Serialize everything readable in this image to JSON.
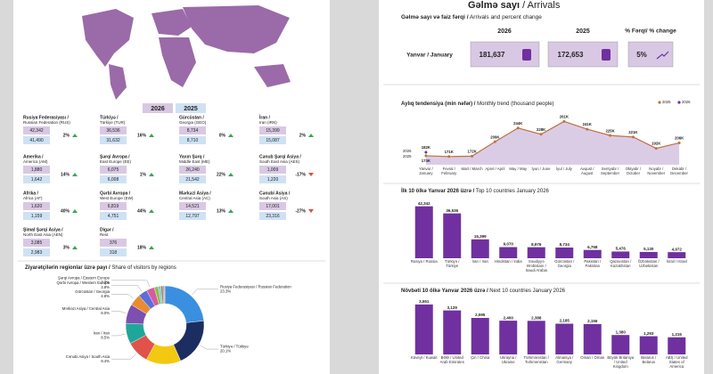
{
  "left": {
    "legend": [
      "2026",
      "2025"
    ],
    "regions": [
      {
        "name": "Rusiya Federasiyası /",
        "name_en": "Russian Federation (RUS)",
        "v2026": "42,342",
        "v2025": "41,490",
        "change": "2%",
        "trend": "up"
      },
      {
        "name": "Türkiyə /",
        "name_en": "Türkiye (TUR)",
        "v2026": "36,536",
        "v2025": "31,632",
        "change": "16%",
        "trend": "up"
      },
      {
        "name": "Gürcüstan /",
        "name_en": "Georgia (GEO)",
        "v2026": "8,734",
        "v2025": "8,710",
        "change": "0%",
        "trend": "up"
      },
      {
        "name": "İran /",
        "name_en": "Iran (IRN)",
        "v2026": "15,399",
        "v2025": "15,087",
        "change": "2%",
        "trend": "up"
      },
      {
        "name": "Amerika /",
        "name_en": "America (AM)",
        "v2026": "1,880",
        "v2025": "1,642",
        "change": "14%",
        "trend": "up"
      },
      {
        "name": "Şərqi Avropa /",
        "name_en": "East Europe (EE)",
        "v2026": "6,075",
        "v2025": "6,008",
        "change": "1%",
        "trend": "up"
      },
      {
        "name": "Yaxın Şərq /",
        "name_en": "Middle East (ME)",
        "v2026": "26,240",
        "v2025": "21,542",
        "change": "22%",
        "trend": "up"
      },
      {
        "name": "Cənub Şərqi Asiya /",
        "name_en": "South East Asia (AES)",
        "v2026": "1,009",
        "v2025": "1,220",
        "change": "-17%",
        "trend": "down"
      },
      {
        "name": "Afrika /",
        "name_en": "Africa (AF)",
        "v2026": "1,620",
        "v2025": "1,159",
        "change": "40%",
        "trend": "up"
      },
      {
        "name": "Qərbi Avropa /",
        "name_en": "West Europe (EW)",
        "v2026": "6,819",
        "v2025": "4,751",
        "change": "44%",
        "trend": "up"
      },
      {
        "name": "Mərkəzi Asiya /",
        "name_en": "Central Asia (AC)",
        "v2026": "14,521",
        "v2025": "12,797",
        "change": "13%",
        "trend": "up"
      },
      {
        "name": "Cənubi Asiya /",
        "name_en": "South Asia (AS)",
        "v2026": "17,001",
        "v2025": "23,316",
        "change": "-27%",
        "trend": "down"
      },
      {
        "name": "Şimal Şərqi Asiya /",
        "name_en": "North East Asia (AEN)",
        "v2026": "3,085",
        "v2025": "2,983",
        "change": "3%",
        "trend": "up"
      },
      {
        "name": "Digər /",
        "name_en": "Rest",
        "v2026": "376",
        "v2025": "318",
        "change": "18%",
        "trend": "up"
      }
    ],
    "share_heading": "Ziyarətçilərin regionlar üzrə payı /",
    "share_heading_en": "Share of visitors by regions"
  },
  "right": {
    "title": "Gəlmə sayı",
    "title_en": "/ Arrivals",
    "kpi_heading": "Gəlmə sayı və faiz fərqi /",
    "kpi_heading_en": "Arrivals and percent change",
    "kpi": {
      "columns": [
        "2026",
        "2025",
        "% Fərqi/ % change"
      ],
      "row": "Yanvar / January",
      "v2026": "181,637",
      "v2025": "172,653",
      "change": "5%"
    },
    "trend_heading": "Aylıq tendensiya (min nəfər) /",
    "trend_heading_en": "Monthly trend (thousand people)",
    "top_heading": "İlk 10 ölkə Yanvar 2026 üzrə /",
    "top_heading_en": "Top 10 countries January 2026",
    "next_heading": "Növbəti 10 ölkə Yanvar 2026 üzrə /",
    "next_heading_en": "Next 10 countries January 2026"
  },
  "chart_data": [
    {
      "type": "donut",
      "categories": [
        "Rusiya Federasiyası / Russian Federation",
        "Türkiyə / Türkiyə",
        null,
        "Cənubi Asiya / South Asia",
        "İran / Iran",
        "Mərkəzi Asiya / Central Asia",
        "Gürcüstan / Georgia",
        "Qərbi Avropa / Western Europe",
        "Şərqi Avropa / Eastern Europe",
        null,
        null,
        null,
        null,
        null
      ],
      "values": [
        23.3,
        20.1,
        14.4,
        9.4,
        8.5,
        8.0,
        4.8,
        3.8,
        3.3,
        1.7,
        1.0,
        0.9,
        0.6,
        0.2
      ],
      "value_labels": [
        "23.3%",
        "20.1%",
        null,
        "9.4%",
        "8.5%",
        "8.0%",
        "4.8%",
        "3.8%",
        "3.3%",
        null,
        null,
        null,
        null,
        null
      ],
      "colors": [
        "#3b8fe0",
        "#1c2d61",
        "#f2c811",
        "#e0524a",
        "#1fa69a",
        "#7c4fb0",
        "#e88c2f",
        "#5b6fd6",
        "#d65b9f",
        "#8fbf4a",
        "#6ec6e8",
        "#b0774b",
        "#999999",
        "#444444"
      ]
    },
    {
      "type": "line",
      "categories": [
        "Yanvar / January",
        "Fevral / February",
        "Mart / March",
        "Aprel / April",
        "May / May",
        "İyun / June",
        "İyul / July",
        "Avqust / August",
        "Sentyabr / September",
        "Oktyabr / October",
        "Noyabr / November",
        "Dekabr / December"
      ],
      "series": [
        {
          "name": "2025",
          "color": "#c0703f",
          "values": [
            173,
            171,
            172,
            209,
            244,
            228,
            261,
            241,
            225,
            221,
            192,
            206
          ],
          "value_labels": [
            "173K",
            "171K",
            "172K",
            "209K",
            "244K",
            "228K",
            "261K",
            "241K",
            "225K",
            "221K",
            "192K",
            "206K"
          ]
        },
        {
          "name": "2026",
          "color": "#7030a0",
          "values": [
            182,
            null,
            null,
            null,
            null,
            null,
            null,
            null,
            null,
            null,
            null,
            null
          ],
          "value_labels": [
            "182K",
            null,
            null,
            null,
            null,
            null,
            null,
            null,
            null,
            null,
            null,
            null
          ]
        }
      ],
      "ylim": [
        150,
        280
      ]
    },
    {
      "type": "bar",
      "categories": [
        "Rusiya / Russia",
        "Türkiyə / Türkiye",
        "İran / Iran",
        "Hindistan / India",
        "Səudiyyə Ərəbistanı / Saudi Arabia",
        "Gürcüstan / Georgia",
        "Pakistan / Pakistan",
        "Qazaxıstan / Kazakhstan",
        "Özbəkistan / Uzbekistan",
        "İsrail / Israel"
      ],
      "values": [
        42342,
        36536,
        15399,
        9070,
        8976,
        8734,
        6758,
        5476,
        5130,
        4972
      ],
      "value_labels": [
        "42,342",
        "36,536",
        "15,399",
        "9,070",
        "8,976",
        "8,734",
        "6,758",
        "5,476",
        "5,130",
        "4,972"
      ],
      "color": "#7030a0",
      "ylim": [
        0,
        45000
      ]
    },
    {
      "type": "bar",
      "categories": [
        "Küveyt / Kuwait",
        "BƏƏ / United Arab Emirates",
        "Çin / China",
        "Ukrayna / Ukraine",
        "Türkmənistan / Turkmenistan",
        "Almaniya / Germany",
        "Oman / Oman",
        "Böyük Britaniya / United Kingdom",
        "Belarus / Belarus",
        "ABŞ / United States of America"
      ],
      "values": [
        3551,
        3129,
        2595,
        2400,
        2388,
        2185,
        2156,
        1380,
        1293,
        1215
      ],
      "value_labels": [
        "3,551",
        "3,129",
        "2,595",
        "2,400",
        "2,388",
        "2,185",
        "2,156",
        "1,380",
        "1,293",
        "1,215"
      ],
      "color": "#7030a0",
      "ylim": [
        0,
        3800
      ]
    }
  ]
}
